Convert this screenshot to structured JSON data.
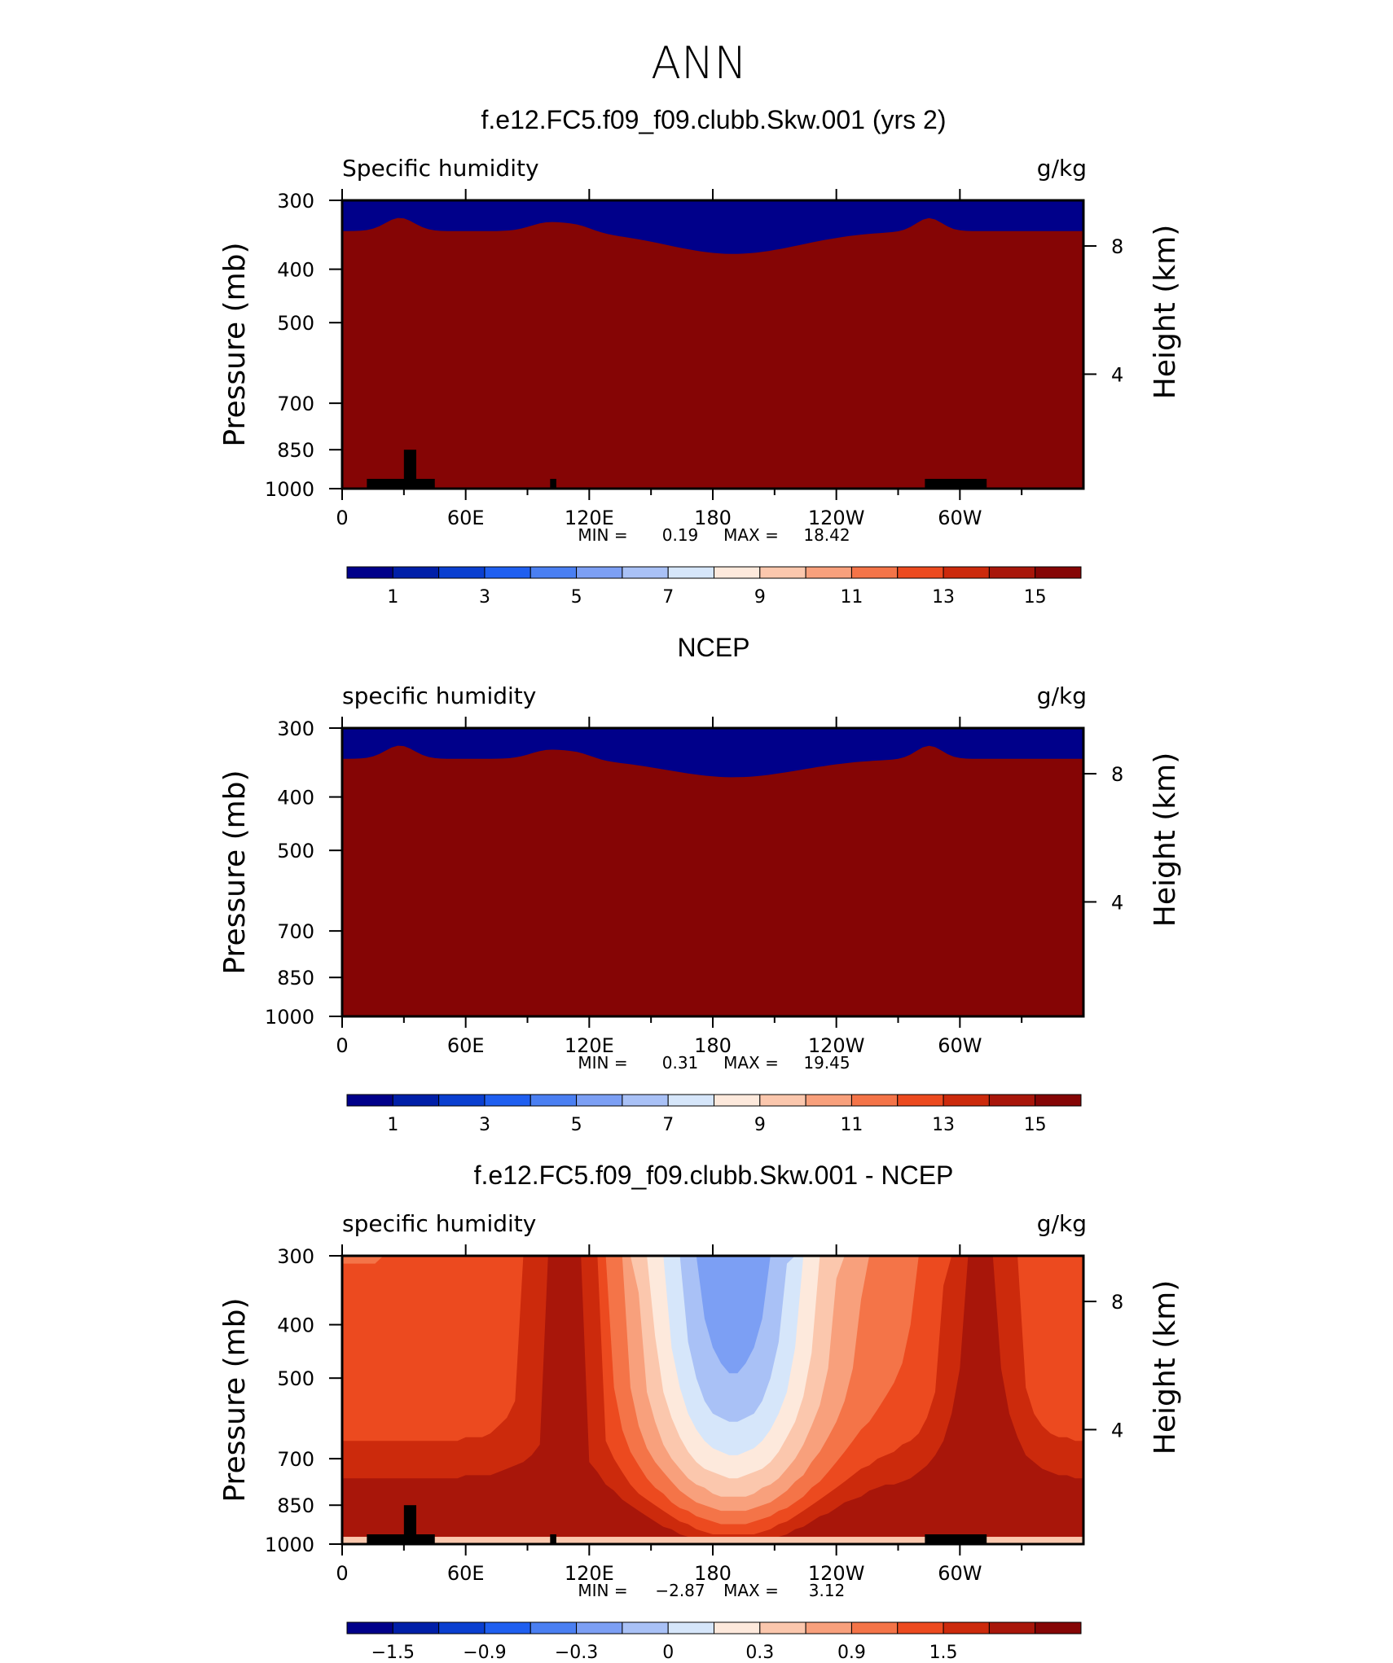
{
  "figure_title": "ANN",
  "chart_data": [
    {
      "type": "heatmap",
      "title": "f.e12.FC5.f09_f09.clubb.Skw.001 (yrs 2)",
      "field_label": "Specific humidity",
      "units": "g/kg",
      "ylabel": "Pressure (mb)",
      "ylabel_right": "Height (km)",
      "x_ticks": [
        "0",
        "60E",
        "120E",
        "180",
        "120W",
        "60W"
      ],
      "y_ticks": [
        "300",
        "400",
        "500",
        "700",
        "850",
        "1000"
      ],
      "y_right_ticks": [
        "8",
        "4"
      ],
      "xlim": [
        0,
        360
      ],
      "ylim": [
        1000,
        300
      ],
      "min_label": "MIN =",
      "min_value": "0.19",
      "max_label": "MAX =",
      "max_value": "18.42",
      "colorbar_ticks": [
        "1",
        "3",
        "5",
        "7",
        "9",
        "11",
        "13",
        "15"
      ],
      "colorbar_levels": [
        0,
        1,
        2,
        3,
        4,
        5,
        6,
        7,
        8,
        9,
        10,
        11,
        12,
        13,
        14,
        15,
        16
      ],
      "colorbar_colors": [
        "#00008a",
        "#001fa8",
        "#0a3fd0",
        "#1f5ff0",
        "#4a7ff2",
        "#7c9ff4",
        "#a9c1f6",
        "#d6e6fa",
        "#fde9dc",
        "#fbc7ad",
        "#f8a07c",
        "#f47448",
        "#ec4a1f",
        "#cc2a0c",
        "#a8160a",
        "#850505"
      ]
    },
    {
      "type": "heatmap",
      "title": "NCEP",
      "field_label": "specific humidity",
      "units": "g/kg",
      "ylabel": "Pressure (mb)",
      "ylabel_right": "Height (km)",
      "x_ticks": [
        "0",
        "60E",
        "120E",
        "180",
        "120W",
        "60W"
      ],
      "y_ticks": [
        "300",
        "400",
        "500",
        "700",
        "850",
        "1000"
      ],
      "y_right_ticks": [
        "8",
        "4"
      ],
      "xlim": [
        0,
        360
      ],
      "ylim": [
        1000,
        300
      ],
      "min_label": "MIN =",
      "min_value": "0.31",
      "max_label": "MAX =",
      "max_value": "19.45",
      "colorbar_ticks": [
        "1",
        "3",
        "5",
        "7",
        "9",
        "11",
        "13",
        "15"
      ],
      "colorbar_levels": [
        0,
        1,
        2,
        3,
        4,
        5,
        6,
        7,
        8,
        9,
        10,
        11,
        12,
        13,
        14,
        15,
        16
      ],
      "colorbar_colors": [
        "#00008a",
        "#001fa8",
        "#0a3fd0",
        "#1f5ff0",
        "#4a7ff2",
        "#7c9ff4",
        "#a9c1f6",
        "#d6e6fa",
        "#fde9dc",
        "#fbc7ad",
        "#f8a07c",
        "#f47448",
        "#ec4a1f",
        "#cc2a0c",
        "#a8160a",
        "#850505"
      ]
    },
    {
      "type": "heatmap",
      "title": "f.e12.FC5.f09_f09.clubb.Skw.001 - NCEP",
      "field_label": "specific humidity",
      "units": "g/kg",
      "ylabel": "Pressure (mb)",
      "ylabel_right": "Height (km)",
      "x_ticks": [
        "0",
        "60E",
        "120E",
        "180",
        "120W",
        "60W"
      ],
      "y_ticks": [
        "300",
        "400",
        "500",
        "700",
        "850",
        "1000"
      ],
      "y_right_ticks": [
        "8",
        "4"
      ],
      "xlim": [
        0,
        360
      ],
      "ylim": [
        1000,
        300
      ],
      "min_label": "MIN =",
      "min_value": "−2.87",
      "max_label": "MAX =",
      "max_value": "3.12",
      "colorbar_ticks": [
        "−1.5",
        "−0.9",
        "−0.3",
        "0",
        "0.3",
        "0.9",
        "1.5"
      ],
      "colorbar_colors": [
        "#00008a",
        "#001fa8",
        "#0a3fd0",
        "#1f5ff0",
        "#4a7ff2",
        "#7c9ff4",
        "#a9c1f6",
        "#d6e6fa",
        "#fde9dc",
        "#fbc7ad",
        "#f8a07c",
        "#f47448",
        "#ec4a1f",
        "#cc2a0c",
        "#a8160a",
        "#850505"
      ]
    }
  ]
}
